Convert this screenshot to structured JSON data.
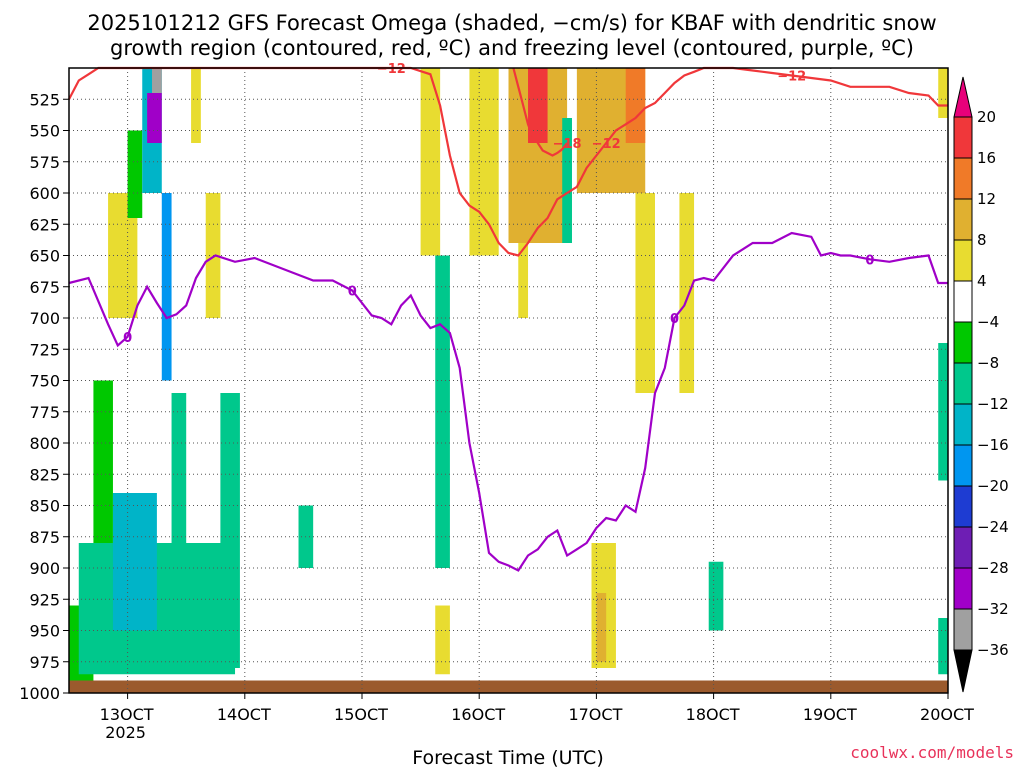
{
  "chart_data": {
    "type": "heatmap",
    "title_line1": "2025101212 GFS Forecast Omega (shaded, −cm/s) for KBAF with dendritic snow",
    "title_line2": "growth region (contoured, red, ºC) and freezing level (contoured, purple, ºC)",
    "xlabel": "Forecast Time (UTC)",
    "credit": "coolwx.com/models",
    "x_ticks": [
      {
        "t": 0,
        "label": "13OCT",
        "sub": "2025"
      },
      {
        "t": 24,
        "label": "14OCT",
        "sub": ""
      },
      {
        "t": 48,
        "label": "15OCT",
        "sub": ""
      },
      {
        "t": 72,
        "label": "16OCT",
        "sub": ""
      },
      {
        "t": 96,
        "label": "17OCT",
        "sub": ""
      },
      {
        "t": 120,
        "label": "18OCT",
        "sub": ""
      },
      {
        "t": 144,
        "label": "19OCT",
        "sub": ""
      },
      {
        "t": 168,
        "label": "20OCT",
        "sub": ""
      }
    ],
    "xlim_hours": [
      -12,
      168
    ],
    "y_ticks": [
      525,
      550,
      575,
      600,
      625,
      650,
      675,
      700,
      725,
      750,
      775,
      800,
      825,
      850,
      875,
      900,
      925,
      950,
      975,
      1000
    ],
    "ylim_hPa": [
      500,
      1000
    ],
    "colorbar": {
      "labels": [
        "20",
        "16",
        "12",
        "8",
        "4",
        "−4",
        "−8",
        "−12",
        "−16",
        "−20",
        "−24",
        "−28",
        "−32",
        "−36"
      ],
      "colors": [
        "#e8007a",
        "#f0373a",
        "#f07a28",
        "#e0b030",
        "#e8dc30",
        "#ffffff",
        "#00c800",
        "#00c88c",
        "#00b4c8",
        "#0096f0",
        "#1e3cd2",
        "#6e1eb4",
        "#a000c8",
        "#a0a0a0",
        "#000000"
      ]
    },
    "omega_patches": [
      {
        "t0": -12,
        "t1": -7,
        "p0": 930,
        "p1": 1000,
        "v": -6
      },
      {
        "t0": -10,
        "t1": 22,
        "p0": 880,
        "p1": 985,
        "v": -8
      },
      {
        "t0": -7,
        "t1": -3,
        "p0": 750,
        "p1": 880,
        "v": -7
      },
      {
        "t0": -4,
        "t1": 2,
        "p0": 600,
        "p1": 700,
        "v": 6
      },
      {
        "t0": -3,
        "t1": 6,
        "p0": 840,
        "p1": 950,
        "v": -12
      },
      {
        "t0": 0,
        "t1": 3,
        "p0": 550,
        "p1": 620,
        "v": -6
      },
      {
        "t0": 3,
        "t1": 7,
        "p0": 500,
        "p1": 600,
        "v": -14
      },
      {
        "t0": 4,
        "t1": 7,
        "p0": 520,
        "p1": 560,
        "v": -28
      },
      {
        "t0": 5,
        "t1": 7,
        "p0": 500,
        "p1": 520,
        "v": -34
      },
      {
        "t0": 7,
        "t1": 9,
        "p0": 600,
        "p1": 750,
        "v": -16
      },
      {
        "t0": 9,
        "t1": 12,
        "p0": 760,
        "p1": 960,
        "v": -8
      },
      {
        "t0": 13,
        "t1": 15,
        "p0": 500,
        "p1": 560,
        "v": 6
      },
      {
        "t0": 16,
        "t1": 19,
        "p0": 600,
        "p1": 700,
        "v": 6
      },
      {
        "t0": 19,
        "t1": 23,
        "p0": 760,
        "p1": 980,
        "v": -8
      },
      {
        "t0": 35,
        "t1": 38,
        "p0": 850,
        "p1": 900,
        "v": -8
      },
      {
        "t0": 63,
        "t1": 66,
        "p0": 650,
        "p1": 900,
        "v": -8
      },
      {
        "t0": 60,
        "t1": 64,
        "p0": 500,
        "p1": 650,
        "v": 6
      },
      {
        "t0": 63,
        "t1": 66,
        "p0": 930,
        "p1": 985,
        "v": 6
      },
      {
        "t0": 70,
        "t1": 76,
        "p0": 500,
        "p1": 650,
        "v": 6
      },
      {
        "t0": 78,
        "t1": 90,
        "p0": 500,
        "p1": 640,
        "v": 9
      },
      {
        "t0": 82,
        "t1": 86,
        "p0": 500,
        "p1": 560,
        "v": 18
      },
      {
        "t0": 80,
        "t1": 82,
        "p0": 640,
        "p1": 700,
        "v": 6
      },
      {
        "t0": 89,
        "t1": 91,
        "p0": 540,
        "p1": 640,
        "v": -8
      },
      {
        "t0": 92,
        "t1": 106,
        "p0": 500,
        "p1": 600,
        "v": 8
      },
      {
        "t0": 102,
        "t1": 106,
        "p0": 500,
        "p1": 560,
        "v": 13
      },
      {
        "t0": 104,
        "t1": 108,
        "p0": 600,
        "p1": 760,
        "v": 6
      },
      {
        "t0": 95,
        "t1": 100,
        "p0": 880,
        "p1": 980,
        "v": 6
      },
      {
        "t0": 96,
        "t1": 98,
        "p0": 920,
        "p1": 975,
        "v": 10
      },
      {
        "t0": 113,
        "t1": 116,
        "p0": 600,
        "p1": 760,
        "v": 6
      },
      {
        "t0": 119,
        "t1": 122,
        "p0": 895,
        "p1": 950,
        "v": -8
      },
      {
        "t0": 166,
        "t1": 168,
        "p0": 720,
        "p1": 830,
        "v": -8
      },
      {
        "t0": 166,
        "t1": 168,
        "p0": 940,
        "p1": 985,
        "v": -8
      },
      {
        "t0": 166,
        "t1": 168,
        "p0": 500,
        "p1": 540,
        "v": 6
      }
    ],
    "freezing_level_0C": {
      "label": "0",
      "t": [
        -12,
        -8,
        -4,
        -2,
        0,
        2,
        4,
        6,
        8,
        10,
        12,
        14,
        16,
        18,
        22,
        26,
        30,
        34,
        38,
        42,
        46,
        50,
        52,
        54,
        56,
        58,
        60,
        62,
        64,
        66,
        68,
        70,
        72,
        74,
        76,
        78,
        80,
        82,
        84,
        86,
        88,
        90,
        92,
        94,
        96,
        98,
        100,
        102,
        104,
        106,
        108,
        110,
        112,
        114,
        116,
        118,
        120,
        124,
        128,
        132,
        136,
        140,
        142,
        144,
        146,
        148,
        152,
        156,
        160,
        164,
        166,
        168
      ],
      "p": [
        672,
        668,
        705,
        722,
        715,
        690,
        675,
        688,
        700,
        697,
        690,
        668,
        655,
        650,
        655,
        652,
        658,
        664,
        670,
        670,
        678,
        698,
        700,
        705,
        690,
        682,
        698,
        708,
        705,
        712,
        740,
        800,
        840,
        888,
        895,
        898,
        902,
        890,
        885,
        875,
        870,
        890,
        885,
        880,
        868,
        860,
        862,
        850,
        855,
        820,
        760,
        740,
        700,
        690,
        670,
        668,
        670,
        650,
        640,
        640,
        632,
        635,
        650,
        648,
        650,
        650,
        653,
        655,
        652,
        650,
        672,
        672
      ]
    },
    "dgz_minus12": {
      "label": "−12",
      "t": [
        -12,
        -10,
        -8,
        -6,
        -4,
        -2,
        0,
        2,
        4,
        6,
        8,
        10,
        12,
        14,
        18,
        22,
        26,
        30,
        34,
        38,
        42,
        46,
        50,
        54,
        58,
        62,
        64,
        66,
        68,
        70,
        72,
        74,
        76,
        78,
        80,
        82,
        84,
        86,
        88,
        90,
        92,
        94,
        96,
        98,
        100,
        102,
        104,
        106,
        108,
        110,
        112,
        114,
        116,
        118,
        120,
        124,
        128,
        132,
        136,
        140,
        144,
        148,
        152,
        156,
        160,
        164,
        166,
        168
      ],
      "p": [
        525,
        510,
        505,
        500,
        500,
        500,
        500,
        500,
        500,
        500,
        500,
        500,
        500,
        500,
        500,
        500,
        500,
        500,
        500,
        500,
        500,
        500,
        500,
        500,
        500,
        505,
        530,
        570,
        600,
        610,
        615,
        625,
        640,
        648,
        650,
        640,
        628,
        620,
        605,
        600,
        595,
        580,
        570,
        560,
        550,
        545,
        540,
        532,
        528,
        520,
        512,
        506,
        503,
        500,
        500,
        500,
        502,
        504,
        506,
        508,
        510,
        515,
        515,
        515,
        520,
        522,
        530,
        530
      ]
    },
    "dgz_minus18": {
      "label": "−18",
      "t": [
        79,
        80,
        81,
        82,
        83,
        84,
        85,
        86,
        87,
        88,
        89,
        90
      ],
      "p": [
        500,
        515,
        530,
        545,
        555,
        560,
        566,
        568,
        570,
        568,
        565,
        560
      ]
    },
    "surface_band": {
      "p_top": 990,
      "p_bottom": 1000,
      "color": "#9b5a2d"
    }
  }
}
